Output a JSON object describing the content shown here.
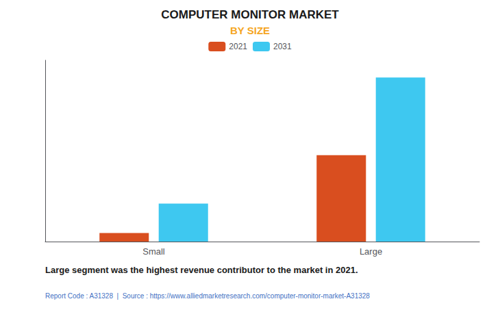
{
  "chart_data": {
    "type": "bar",
    "title": "COMPUTER MONITOR MARKET",
    "subtitle": "BY SIZE",
    "categories": [
      "Small",
      "Large"
    ],
    "series": [
      {
        "name": "2021",
        "color": "#D94E1F",
        "values": [
          0.5,
          5.0
        ]
      },
      {
        "name": "2031",
        "color": "#3EC8F0",
        "values": [
          2.2,
          9.5
        ]
      }
    ],
    "ylim": [
      0,
      10.5
    ],
    "yticks": [],
    "grid": false,
    "legend": "top",
    "tick_labels": "x",
    "annotations": [
      "Large segment was the highest revenue contributor to the market in 2021.",
      "Report Code : A31328  |  Source : https://www.alliedmarketresearch.com/computer-monitor-market-A31328"
    ]
  }
}
